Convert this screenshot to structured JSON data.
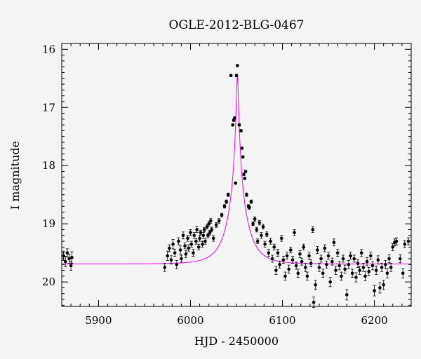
{
  "chart_data": {
    "type": "scatter",
    "title": "OGLE-2012-BLG-0467",
    "xlabel": "HJD - 2450000",
    "ylabel": "I magnitude",
    "xlim": [
      5860,
      6240
    ],
    "ylim": [
      20.42,
      15.9
    ],
    "y_inverted": true,
    "grid": false,
    "x_ticks": [
      "5900",
      "6000",
      "6100",
      "6200"
    ],
    "y_ticks": [
      "16",
      "17",
      "18",
      "19",
      "20"
    ],
    "colors": {
      "points": "#000000",
      "model": "#ff00ff",
      "background": "#f4f4f4"
    },
    "model_curve": {
      "name": "",
      "baseline_mag": 19.69,
      "peak_mag": 16.45,
      "peak_hjd": 6051,
      "timescale_days": 20
    },
    "series": [
      {
        "name": "",
        "points": [
          [
            5862,
            19.55,
            0.08
          ],
          [
            5864,
            19.65,
            0.09
          ],
          [
            5866,
            19.5,
            0.07
          ],
          [
            5868,
            19.6,
            0.08
          ],
          [
            5870,
            19.72,
            0.08
          ],
          [
            5871,
            19.58,
            0.1
          ],
          [
            5972,
            19.75,
            0.07
          ],
          [
            5975,
            19.55,
            0.08
          ],
          [
            5977,
            19.42,
            0.06
          ],
          [
            5979,
            19.62,
            0.07
          ],
          [
            5981,
            19.35,
            0.08
          ],
          [
            5983,
            19.5,
            0.06
          ],
          [
            5985,
            19.7,
            0.07
          ],
          [
            5987,
            19.3,
            0.06
          ],
          [
            5989,
            19.45,
            0.07
          ],
          [
            5990,
            19.6,
            0.06
          ],
          [
            5992,
            19.2,
            0.06
          ],
          [
            5994,
            19.38,
            0.05
          ],
          [
            5995,
            19.52,
            0.06
          ],
          [
            5997,
            19.25,
            0.05
          ],
          [
            5998,
            19.42,
            0.06
          ],
          [
            6000,
            19.15,
            0.05
          ],
          [
            6001,
            19.35,
            0.05
          ],
          [
            6003,
            19.5,
            0.06
          ],
          [
            6004,
            19.2,
            0.05
          ],
          [
            6006,
            19.3,
            0.05
          ],
          [
            6007,
            19.1,
            0.05
          ],
          [
            6009,
            19.4,
            0.05
          ],
          [
            6010,
            19.25,
            0.05
          ],
          [
            6011,
            19.15,
            0.04
          ],
          [
            6013,
            19.35,
            0.05
          ],
          [
            6014,
            19.2,
            0.05
          ],
          [
            6015,
            19.1,
            0.04
          ],
          [
            6016,
            19.3,
            0.05
          ],
          [
            6018,
            19.05,
            0.04
          ],
          [
            6019,
            19.2,
            0.04
          ],
          [
            6020,
            19.0,
            0.04
          ],
          [
            6021,
            19.15,
            0.04
          ],
          [
            6022,
            18.95,
            0.04
          ],
          [
            6023,
            19.1,
            0.04
          ],
          [
            6025,
            19.25,
            0.05
          ],
          [
            6028,
            19.02,
            0.04
          ],
          [
            6031,
            18.95,
            0.04
          ],
          [
            6034,
            18.85,
            0.03
          ],
          [
            6037,
            18.7,
            0.03
          ],
          [
            6039,
            18.62,
            0.03
          ],
          [
            6041,
            18.5,
            0.03
          ],
          [
            6044,
            16.45,
            0.02
          ],
          [
            6046,
            17.3,
            0.02
          ],
          [
            6047,
            17.22,
            0.02
          ],
          [
            6048,
            17.18,
            0.02
          ],
          [
            6049,
            18.3,
            0.02
          ],
          [
            6050,
            16.45,
            0.02
          ],
          [
            6051,
            16.28,
            0.02
          ],
          [
            6053,
            17.3,
            0.02
          ],
          [
            6055,
            17.4,
            0.02
          ],
          [
            6056,
            17.7,
            0.02
          ],
          [
            6057,
            17.85,
            0.02
          ],
          [
            6058,
            18.15,
            0.02
          ],
          [
            6059,
            18.22,
            0.02
          ],
          [
            6060,
            18.1,
            0.02
          ],
          [
            6061,
            18.5,
            0.03
          ],
          [
            6063,
            18.7,
            0.03
          ],
          [
            6064,
            18.72,
            0.03
          ],
          [
            6066,
            18.62,
            0.03
          ],
          [
            6068,
            19.0,
            0.03
          ],
          [
            6070,
            18.92,
            0.04
          ],
          [
            6072,
            19.1,
            0.04
          ],
          [
            6073,
            19.3,
            0.04
          ],
          [
            6075,
            18.98,
            0.04
          ],
          [
            6077,
            19.2,
            0.05
          ],
          [
            6079,
            19.05,
            0.04
          ],
          [
            6081,
            19.35,
            0.05
          ],
          [
            6083,
            19.18,
            0.04
          ],
          [
            6085,
            19.5,
            0.06
          ],
          [
            6087,
            19.3,
            0.05
          ],
          [
            6089,
            19.6,
            0.06
          ],
          [
            6091,
            19.4,
            0.05
          ],
          [
            6093,
            19.8,
            0.07
          ],
          [
            6095,
            19.5,
            0.06
          ],
          [
            6097,
            19.7,
            0.06
          ],
          [
            6099,
            19.25,
            0.05
          ],
          [
            6101,
            19.62,
            0.06
          ],
          [
            6103,
            19.9,
            0.07
          ],
          [
            6105,
            19.55,
            0.06
          ],
          [
            6107,
            19.78,
            0.07
          ],
          [
            6109,
            19.45,
            0.05
          ],
          [
            6111,
            19.62,
            0.06
          ],
          [
            6113,
            19.15,
            0.05
          ],
          [
            6115,
            19.72,
            0.06
          ],
          [
            6117,
            19.85,
            0.07
          ],
          [
            6119,
            19.52,
            0.06
          ],
          [
            6121,
            19.65,
            0.06
          ],
          [
            6123,
            19.4,
            0.05
          ],
          [
            6125,
            19.75,
            0.07
          ],
          [
            6127,
            19.9,
            0.07
          ],
          [
            6129,
            19.55,
            0.06
          ],
          [
            6131,
            19.68,
            0.06
          ],
          [
            6133,
            19.1,
            0.05
          ],
          [
            6134,
            20.35,
            0.09
          ],
          [
            6136,
            20.05,
            0.08
          ],
          [
            6138,
            19.45,
            0.06
          ],
          [
            6140,
            19.75,
            0.07
          ],
          [
            6142,
            19.6,
            0.06
          ],
          [
            6144,
            19.85,
            0.07
          ],
          [
            6146,
            19.42,
            0.06
          ],
          [
            6148,
            19.7,
            0.06
          ],
          [
            6150,
            19.55,
            0.06
          ],
          [
            6152,
            20.0,
            0.08
          ],
          [
            6154,
            19.65,
            0.06
          ],
          [
            6156,
            19.32,
            0.06
          ],
          [
            6158,
            19.8,
            0.07
          ],
          [
            6160,
            19.5,
            0.06
          ],
          [
            6162,
            19.72,
            0.07
          ],
          [
            6164,
            19.9,
            0.07
          ],
          [
            6166,
            19.6,
            0.06
          ],
          [
            6168,
            19.78,
            0.07
          ],
          [
            6170,
            20.22,
            0.09
          ],
          [
            6172,
            19.7,
            0.07
          ],
          [
            6174,
            19.55,
            0.06
          ],
          [
            6176,
            19.85,
            0.07
          ],
          [
            6178,
            19.6,
            0.06
          ],
          [
            6180,
            19.92,
            0.08
          ],
          [
            6182,
            19.68,
            0.07
          ],
          [
            6184,
            19.8,
            0.07
          ],
          [
            6186,
            19.5,
            0.06
          ],
          [
            6188,
            19.75,
            0.07
          ],
          [
            6190,
            19.9,
            0.08
          ],
          [
            6192,
            19.65,
            0.07
          ],
          [
            6194,
            19.82,
            0.07
          ],
          [
            6196,
            19.55,
            0.06
          ],
          [
            6198,
            19.72,
            0.07
          ],
          [
            6200,
            20.15,
            0.09
          ],
          [
            6202,
            19.8,
            0.07
          ],
          [
            6204,
            19.62,
            0.07
          ],
          [
            6206,
            20.1,
            0.09
          ],
          [
            6208,
            19.75,
            0.07
          ],
          [
            6210,
            20.05,
            0.08
          ],
          [
            6212,
            19.7,
            0.07
          ],
          [
            6214,
            19.85,
            0.08
          ],
          [
            6216,
            19.6,
            0.07
          ],
          [
            6218,
            19.75,
            0.07
          ],
          [
            6220,
            19.4,
            0.06
          ],
          [
            6222,
            19.32,
            0.06
          ],
          [
            6224,
            19.3,
            0.06
          ],
          [
            6228,
            19.6,
            0.07
          ],
          [
            6231,
            19.85,
            0.08
          ],
          [
            6233,
            19.35,
            0.06
          ],
          [
            6237,
            19.3,
            0.06
          ]
        ]
      }
    ]
  }
}
